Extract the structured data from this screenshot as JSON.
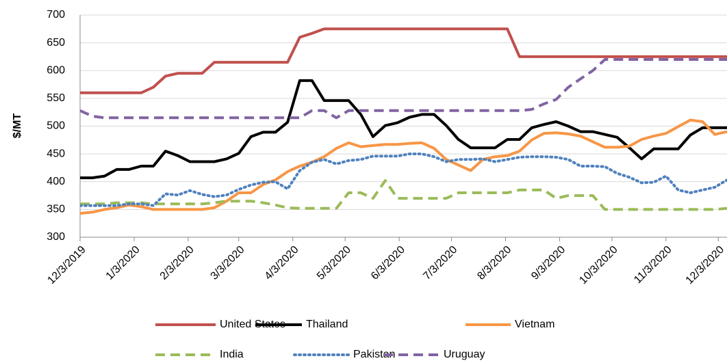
{
  "chart_data": {
    "type": "line",
    "y_label": "$/MT",
    "x": [
      "2019-12-03",
      "2019-12-10",
      "2019-12-17",
      "2019-12-24",
      "2019-12-31",
      "2020-01-07",
      "2020-01-14",
      "2020-01-21",
      "2020-01-28",
      "2020-02-04",
      "2020-02-11",
      "2020-02-18",
      "2020-02-25",
      "2020-03-03",
      "2020-03-10",
      "2020-03-17",
      "2020-03-24",
      "2020-03-31",
      "2020-04-07",
      "2020-04-14",
      "2020-04-21",
      "2020-04-28",
      "2020-05-05",
      "2020-05-12",
      "2020-05-19",
      "2020-05-26",
      "2020-06-02",
      "2020-06-09",
      "2020-06-16",
      "2020-06-23",
      "2020-06-30",
      "2020-07-07",
      "2020-07-14",
      "2020-07-21",
      "2020-07-28",
      "2020-08-04",
      "2020-08-11",
      "2020-08-18",
      "2020-08-25",
      "2020-09-01",
      "2020-09-08",
      "2020-09-15",
      "2020-09-22",
      "2020-09-29",
      "2020-10-06",
      "2020-10-13",
      "2020-10-20",
      "2020-10-27",
      "2020-11-03",
      "2020-11-10",
      "2020-11-17",
      "2020-11-24",
      "2020-12-01",
      "2020-12-08"
    ],
    "xlim": [
      "2019-12-03",
      "2020-12-08"
    ],
    "xticks": [
      {
        "value": "2019-12-03",
        "label": "12/3/2019"
      },
      {
        "value": "2020-01-03",
        "label": "1/3/2020"
      },
      {
        "value": "2020-02-03",
        "label": "2/3/2020"
      },
      {
        "value": "2020-03-03",
        "label": "3/3/2020"
      },
      {
        "value": "2020-04-03",
        "label": "4/3/2020"
      },
      {
        "value": "2020-05-03",
        "label": "5/3/2020"
      },
      {
        "value": "2020-06-03",
        "label": "6/3/2020"
      },
      {
        "value": "2020-07-03",
        "label": "7/3/2020"
      },
      {
        "value": "2020-08-03",
        "label": "8/3/2020"
      },
      {
        "value": "2020-09-03",
        "label": "9/3/2020"
      },
      {
        "value": "2020-10-03",
        "label": "10/3/2020"
      },
      {
        "value": "2020-11-03",
        "label": "11/3/2020"
      },
      {
        "value": "2020-12-03",
        "label": "12/3/2020"
      }
    ],
    "ylim": [
      300,
      700
    ],
    "yticks": [
      300,
      350,
      400,
      450,
      500,
      550,
      600,
      650,
      700
    ],
    "grid": true,
    "legend": "bottom",
    "series": [
      {
        "name": "United States",
        "color": "#c0504d",
        "line_style": "solid",
        "values": [
          560,
          560,
          560,
          560,
          560,
          560,
          570,
          590,
          595,
          595,
          595,
          615,
          615,
          615,
          615,
          615,
          615,
          615,
          660,
          667,
          675,
          675,
          675,
          675,
          675,
          675,
          675,
          675,
          675,
          675,
          675,
          675,
          675,
          675,
          675,
          675,
          625,
          625,
          625,
          625,
          625,
          625,
          625,
          625,
          625,
          625,
          625,
          625,
          625,
          625,
          625,
          625,
          625,
          625
        ]
      },
      {
        "name": "Thailand",
        "color": "#000000",
        "line_style": "solid",
        "values": [
          407,
          407,
          410,
          422,
          422,
          428,
          428,
          455,
          447,
          436,
          436,
          436,
          441,
          451,
          481,
          489,
          489,
          507,
          582,
          582,
          546,
          546,
          546,
          521,
          481,
          501,
          506,
          516,
          521,
          521,
          501,
          476,
          461,
          461,
          461,
          476,
          476,
          497,
          503,
          508,
          500,
          490,
          490,
          485,
          480,
          461,
          441,
          459,
          459,
          459,
          484,
          497,
          497,
          497
        ]
      },
      {
        "name": "Vietnam",
        "color": "#f79646",
        "line_style": "solid",
        "values": [
          343,
          345,
          350,
          353,
          358,
          355,
          350,
          350,
          350,
          350,
          350,
          353,
          365,
          380,
          380,
          395,
          403,
          418,
          428,
          435,
          445,
          460,
          470,
          463,
          465,
          467,
          467,
          469,
          470,
          460,
          440,
          430,
          420,
          440,
          445,
          447,
          455,
          475,
          487,
          488,
          486,
          482,
          472,
          462,
          462,
          464,
          476,
          482,
          487,
          499,
          511,
          508,
          485,
          490
        ]
      },
      {
        "name": "India",
        "color": "#9bbb59",
        "line_style": "dashed",
        "values": [
          360,
          360,
          360,
          362,
          362,
          362,
          360,
          360,
          360,
          360,
          360,
          362,
          365,
          365,
          365,
          362,
          358,
          353,
          352,
          352,
          352,
          352,
          380,
          380,
          370,
          402,
          370,
          370,
          370,
          370,
          370,
          380,
          380,
          380,
          380,
          380,
          385,
          385,
          385,
          370,
          375,
          375,
          375,
          350,
          350,
          350,
          350,
          350,
          350,
          350,
          350,
          350,
          350,
          352
        ]
      },
      {
        "name": "Pakistan",
        "color": "#4f81bd",
        "line_style": "dotted",
        "values": [
          357,
          357,
          357,
          357,
          360,
          360,
          357,
          378,
          376,
          384,
          377,
          373,
          376,
          386,
          394,
          399,
          400,
          387,
          420,
          435,
          440,
          432,
          438,
          440,
          446,
          446,
          446,
          450,
          450,
          445,
          436,
          440,
          440,
          441,
          436,
          440,
          444,
          445,
          445,
          444,
          440,
          428,
          428,
          427,
          415,
          408,
          398,
          399,
          410,
          385,
          380,
          385,
          390,
          403
        ]
      },
      {
        "name": "Uruguay",
        "color": "#8064a2",
        "line_style": "dashed",
        "values": [
          528,
          518,
          515,
          515,
          515,
          515,
          515,
          515,
          515,
          515,
          515,
          515,
          515,
          515,
          515,
          515,
          515,
          515,
          515,
          528,
          528,
          515,
          528,
          528,
          528,
          528,
          528,
          528,
          528,
          528,
          528,
          528,
          528,
          528,
          528,
          528,
          528,
          530,
          540,
          548,
          570,
          585,
          600,
          620,
          620,
          620,
          620,
          620,
          620,
          620,
          620,
          620,
          620,
          620
        ]
      }
    ]
  }
}
